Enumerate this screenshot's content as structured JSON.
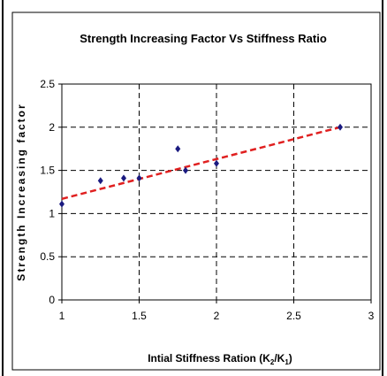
{
  "chart_data": {
    "type": "scatter",
    "title": "Strength Increasing Factor Vs Stiffness Ratio",
    "xlabel": {
      "prefix": "Intial Stiffness Ration (K",
      "sub1": "2",
      "mid": "/K",
      "sub2": "1",
      "suffix": ")"
    },
    "ylabel": "Strength Increasing factor",
    "xlim": [
      1,
      3
    ],
    "ylim": [
      0,
      2.5
    ],
    "xticks": [
      "1",
      "1.5",
      "2",
      "2.5",
      "3"
    ],
    "yticks": [
      "0",
      "0.5",
      "1",
      "1.5",
      "2",
      "2.5"
    ],
    "xtick_values": [
      1,
      1.5,
      2,
      2.5,
      3
    ],
    "ytick_values": [
      0,
      0.5,
      1,
      1.5,
      2,
      2.5
    ],
    "grid": true,
    "grid_style": "dashed",
    "legend": "none",
    "points": [
      {
        "x": 1.0,
        "y": 1.11
      },
      {
        "x": 1.25,
        "y": 1.38
      },
      {
        "x": 1.4,
        "y": 1.41
      },
      {
        "x": 1.5,
        "y": 1.41
      },
      {
        "x": 1.75,
        "y": 1.75
      },
      {
        "x": 1.8,
        "y": 1.5
      },
      {
        "x": 2.0,
        "y": 1.58
      },
      {
        "x": 2.8,
        "y": 2.0
      }
    ],
    "trendline": {
      "x": [
        1.0,
        2.8
      ],
      "y": [
        1.17,
        2.0
      ],
      "color": "#e02020",
      "style": "dashed"
    },
    "marker_color": "#1a1a80"
  }
}
